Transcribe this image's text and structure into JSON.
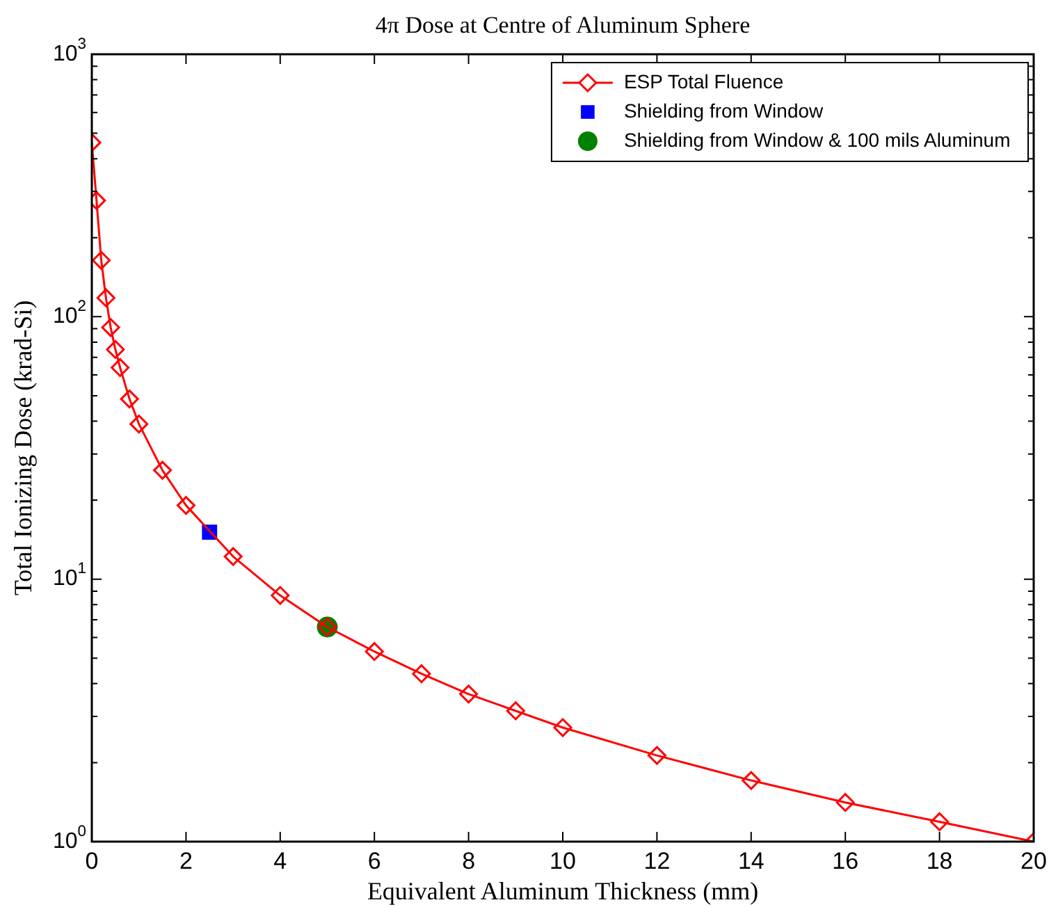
{
  "chart_data": {
    "type": "line",
    "title": "4π Dose at Centre of Aluminum Sphere",
    "xlabel": "Equivalent Aluminum Thickness (mm)",
    "ylabel": "Total Ionizing Dose (krad-Si)",
    "x": [
      0,
      0.1,
      0.2,
      0.3,
      0.4,
      0.5,
      0.6,
      0.8,
      1,
      1.5,
      2,
      3,
      4,
      5,
      6,
      7,
      8,
      9,
      10,
      12,
      14,
      16,
      18,
      20
    ],
    "series": [
      {
        "name": "ESP Total Fluence",
        "color": "#ff0000",
        "marker": "diamond",
        "line_style": "solid",
        "values": [
          461,
          277,
          164,
          118,
          91,
          75,
          64,
          48.6,
          39,
          26,
          19.1,
          12.2,
          8.67,
          6.57,
          5.3,
          4.36,
          3.65,
          3.15,
          2.72,
          2.13,
          1.71,
          1.41,
          1.19,
          1.0
        ]
      },
      {
        "name": "Shielding from Window",
        "type": "scatter",
        "color": "#0000ff",
        "marker": "square",
        "x": [
          2.5
        ],
        "values": [
          15.1
        ]
      },
      {
        "name": "Shielding from Window & 100 mils Aluminum",
        "type": "scatter",
        "color": "#008000",
        "marker": "circle",
        "x": [
          5
        ],
        "values": [
          6.57
        ]
      }
    ],
    "xlim": [
      0,
      20
    ],
    "xticks": [
      0,
      2,
      4,
      6,
      8,
      10,
      12,
      14,
      16,
      18,
      20
    ],
    "ylim": [
      1,
      1000
    ],
    "yticks": [
      {
        "value": 1,
        "label": "10$^{0}$"
      },
      {
        "value": 2,
        "label": null
      },
      {
        "value": 3,
        "label": null
      },
      {
        "value": 4,
        "label": null
      },
      {
        "value": 5,
        "label": null
      },
      {
        "value": 6,
        "label": null
      },
      {
        "value": 7,
        "label": null
      },
      {
        "value": 8,
        "label": null
      },
      {
        "value": 9,
        "label": null
      },
      {
        "value": 10,
        "label": "10$^{1}$"
      },
      {
        "value": 20,
        "label": null
      },
      {
        "value": 30,
        "label": null
      },
      {
        "value": 40,
        "label": null
      },
      {
        "value": 50,
        "label": null
      },
      {
        "value": 60,
        "label": null
      },
      {
        "value": 70,
        "label": null
      },
      {
        "value": 80,
        "label": null
      },
      {
        "value": 90,
        "label": null
      },
      {
        "value": 100,
        "label": "10$^{2}$"
      },
      {
        "value": 200,
        "label": null
      },
      {
        "value": 300,
        "label": null
      },
      {
        "value": 400,
        "label": null
      },
      {
        "value": 500,
        "label": null
      },
      {
        "value": 600,
        "label": null
      },
      {
        "value": 700,
        "label": null
      },
      {
        "value": 800,
        "label": null
      },
      {
        "value": 900,
        "label": null
      },
      {
        "value": 1000,
        "label": "10$^{3}$"
      }
    ],
    "log": "y",
    "grid": false,
    "legend": "top right"
  }
}
